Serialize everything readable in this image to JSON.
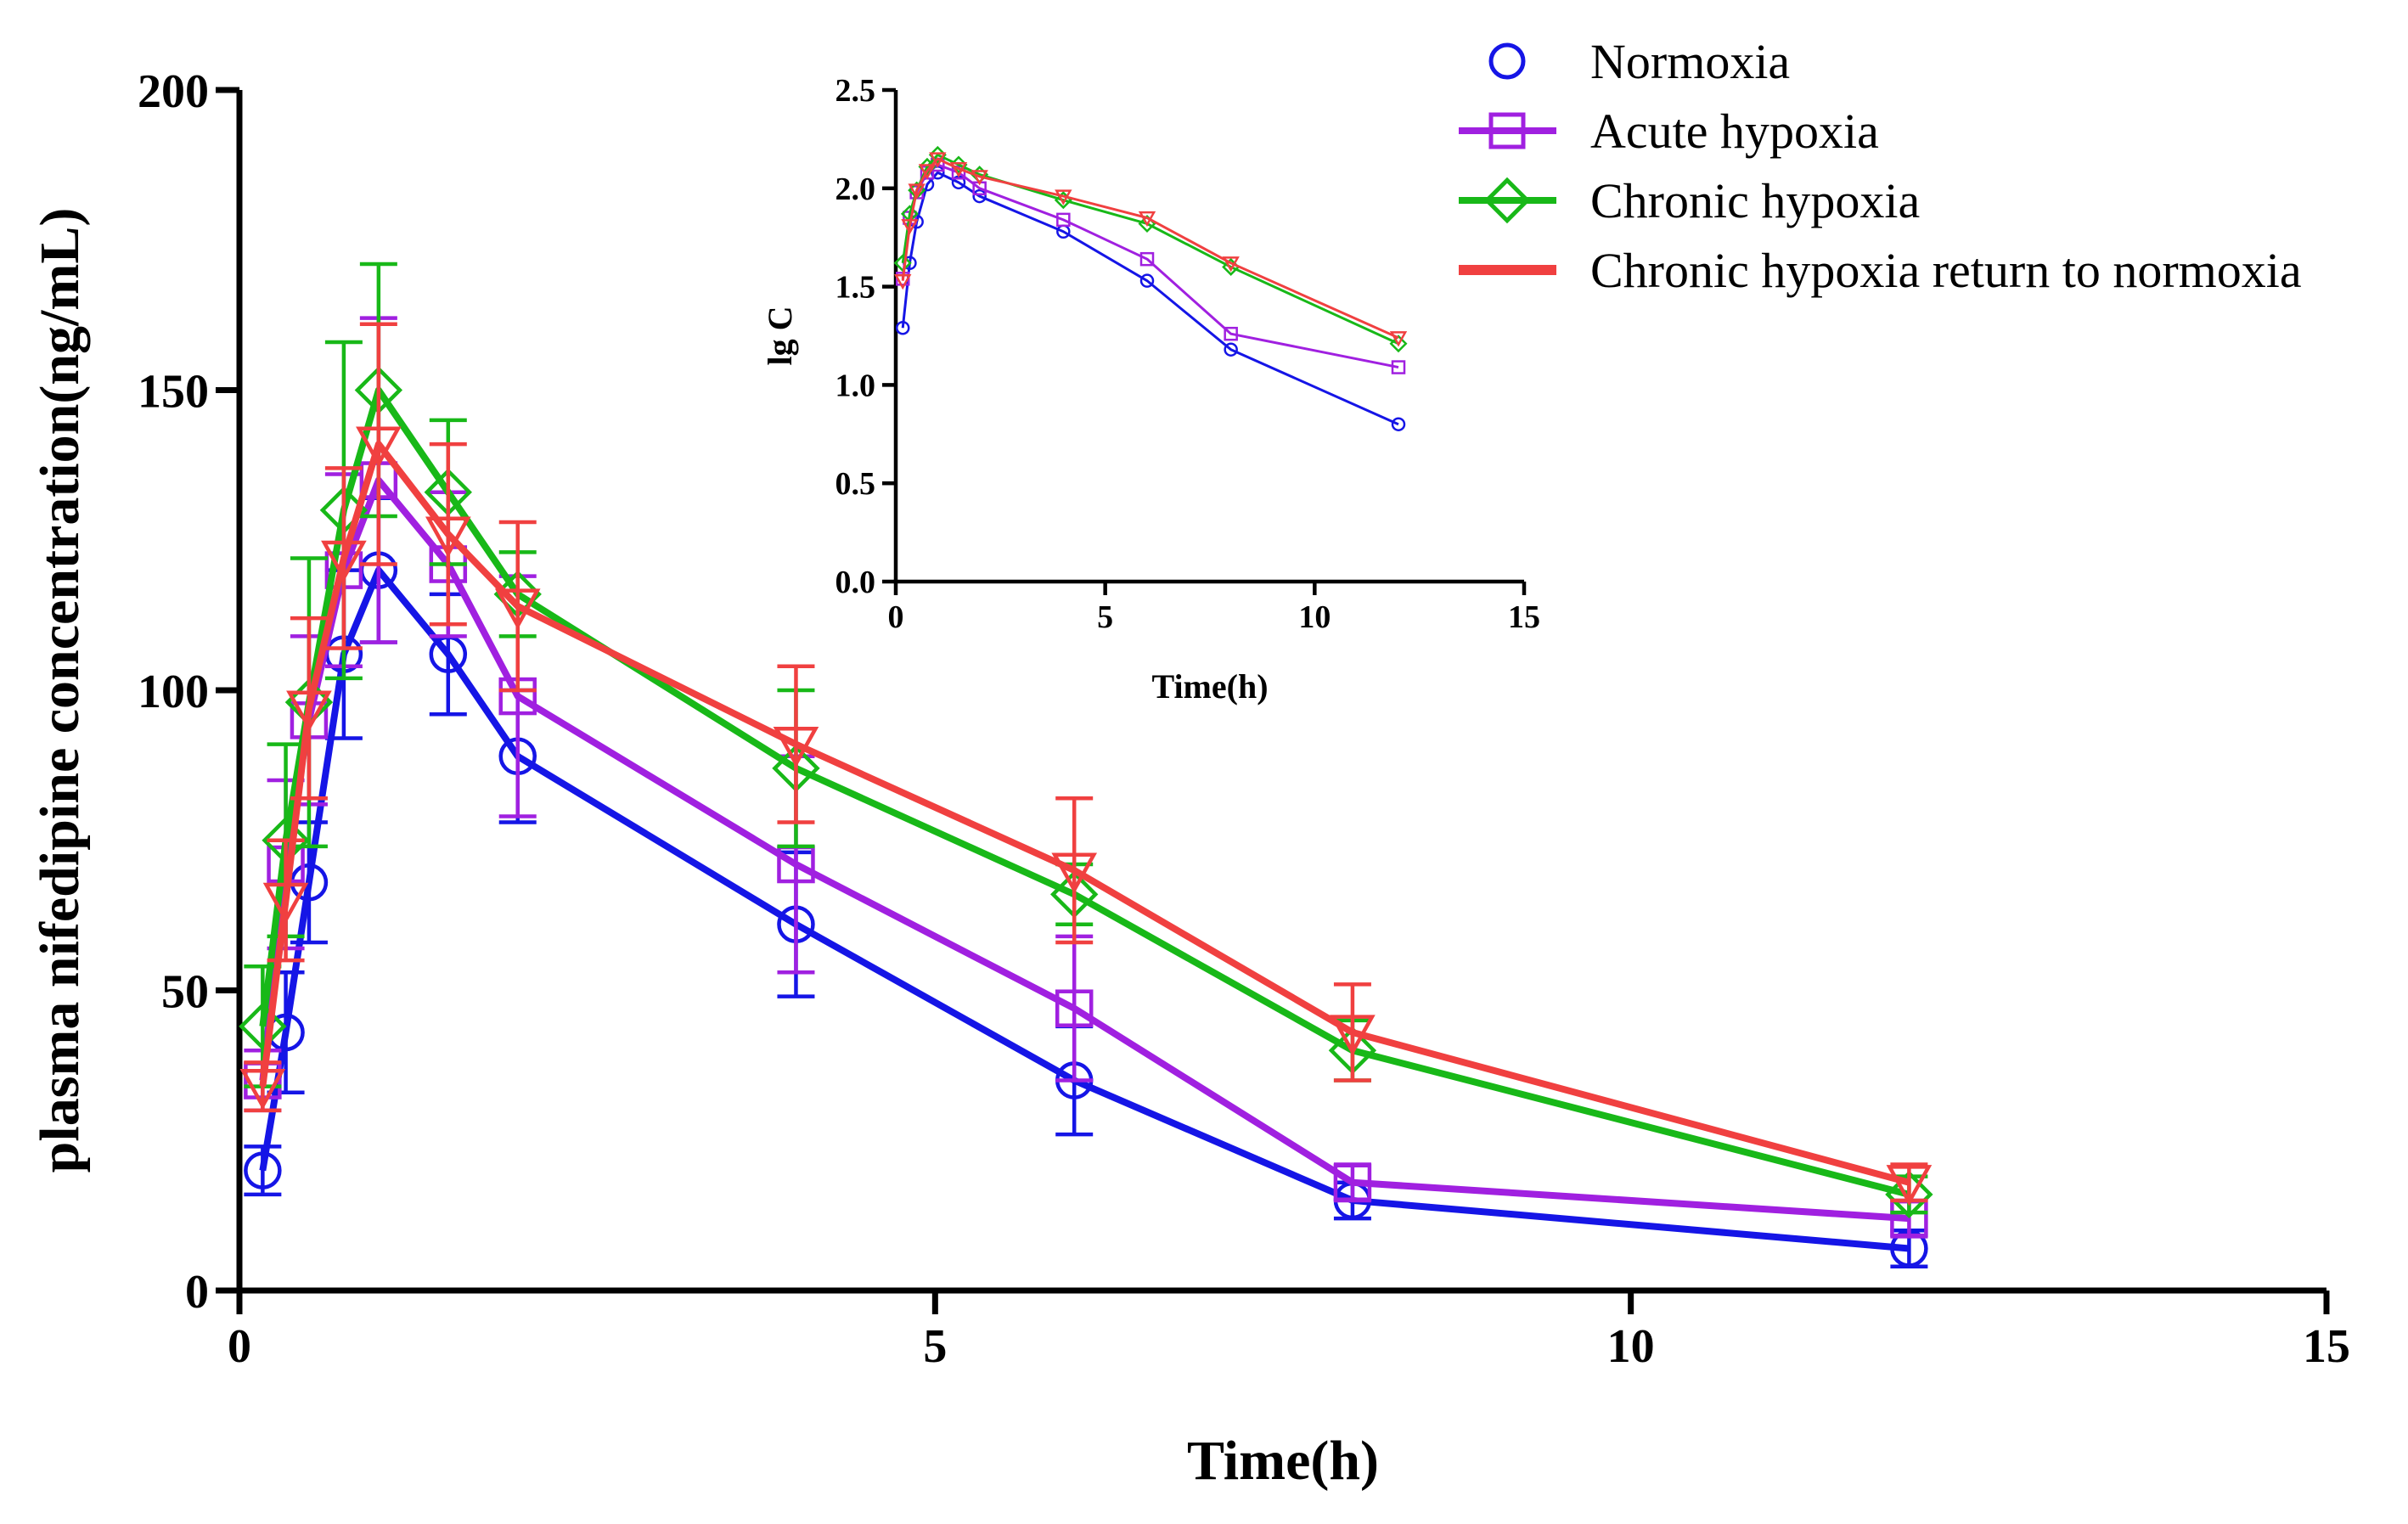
{
  "chart_data": [
    {
      "type": "line",
      "title": "",
      "xlabel": "Time(h)",
      "ylabel": "plasma nifedipine concentration(ng/mL)",
      "xlim": [
        0,
        15
      ],
      "ylim": [
        0,
        200
      ],
      "xticks": [
        "0",
        "5",
        "10",
        "15"
      ],
      "yticks": [
        "0",
        "50",
        "100",
        "150",
        "200"
      ],
      "legend_position": "top-right",
      "series": [
        {
          "name": "Normoxia",
          "color": "#1515e6",
          "marker": "circle",
          "x": [
            0.167,
            0.333,
            0.5,
            0.75,
            1,
            1.5,
            2,
            4,
            6,
            8,
            12
          ],
          "y": [
            20,
            43,
            68,
            106,
            120,
            106,
            89,
            61,
            35,
            15,
            7
          ],
          "err": [
            4,
            10,
            10,
            14,
            12,
            10,
            11,
            12,
            9,
            3,
            3
          ]
        },
        {
          "name": "Acute hypoxia",
          "color": "#a020e0",
          "marker": "square",
          "x": [
            0.167,
            0.333,
            0.5,
            0.75,
            1,
            1.5,
            2,
            4,
            6,
            8,
            12
          ],
          "y": [
            35,
            71,
            95,
            120,
            135,
            121,
            99,
            71,
            47,
            18,
            12
          ],
          "err": [
            5,
            14,
            14,
            16,
            27,
            12,
            20,
            18,
            12,
            3,
            3
          ]
        },
        {
          "name": "Chronic hypoxia",
          "color": "#18b818",
          "marker": "diamond",
          "x": [
            0.167,
            0.333,
            0.5,
            0.75,
            1,
            1.5,
            2,
            4,
            6,
            8,
            12
          ],
          "y": [
            44,
            75,
            98,
            130,
            150,
            133,
            116,
            87,
            66,
            40,
            16
          ],
          "err": [
            10,
            16,
            24,
            28,
            21,
            12,
            7,
            13,
            5,
            5,
            3
          ]
        },
        {
          "name": "Chronic hypoxia return to normoxia",
          "color": "#f04040",
          "marker": "triangle-down",
          "x": [
            0.167,
            0.333,
            0.5,
            0.75,
            1,
            1.5,
            2,
            4,
            6,
            8,
            12
          ],
          "y": [
            34,
            65,
            97,
            122,
            141,
            126,
            114,
            91,
            70,
            43,
            18
          ],
          "err": [
            4,
            10,
            15,
            15,
            20,
            15,
            14,
            13,
            12,
            8,
            3
          ]
        }
      ]
    },
    {
      "type": "line",
      "title": "",
      "xlabel": "Time(h)",
      "ylabel": "lg C",
      "xlim": [
        0,
        15
      ],
      "ylim": [
        0,
        2.5
      ],
      "xticks": [
        "0",
        "5",
        "10",
        "15"
      ],
      "yticks": [
        "0.0",
        "0.5",
        "1.0",
        "1.5",
        "2.0",
        "2.5"
      ],
      "series": [
        {
          "name": "Normoxia",
          "color": "#1515e6",
          "marker": "circle",
          "x": [
            0.167,
            0.333,
            0.5,
            0.75,
            1,
            1.5,
            2,
            4,
            6,
            8,
            12
          ],
          "y": [
            1.29,
            1.62,
            1.83,
            2.02,
            2.08,
            2.03,
            1.96,
            1.78,
            1.53,
            1.18,
            0.8
          ]
        },
        {
          "name": "Acute hypoxia",
          "color": "#a020e0",
          "marker": "square",
          "x": [
            0.167,
            0.333,
            0.5,
            0.75,
            1,
            1.5,
            2,
            4,
            6,
            8,
            12
          ],
          "y": [
            1.54,
            1.85,
            1.98,
            2.08,
            2.12,
            2.08,
            2.0,
            1.84,
            1.64,
            1.26,
            1.09
          ]
        },
        {
          "name": "Chronic hypoxia",
          "color": "#18b818",
          "marker": "diamond",
          "x": [
            0.167,
            0.333,
            0.5,
            0.75,
            1,
            1.5,
            2,
            4,
            6,
            8,
            12
          ],
          "y": [
            1.62,
            1.87,
            1.99,
            2.11,
            2.17,
            2.12,
            2.07,
            1.94,
            1.82,
            1.6,
            1.21
          ]
        },
        {
          "name": "Chronic hypoxia return to normoxia",
          "color": "#f04040",
          "marker": "triangle-down",
          "x": [
            0.167,
            0.333,
            0.5,
            0.75,
            1,
            1.5,
            2,
            4,
            6,
            8,
            12
          ],
          "y": [
            1.53,
            1.81,
            1.99,
            2.09,
            2.15,
            2.1,
            2.06,
            1.96,
            1.85,
            1.62,
            1.24
          ]
        }
      ]
    }
  ]
}
